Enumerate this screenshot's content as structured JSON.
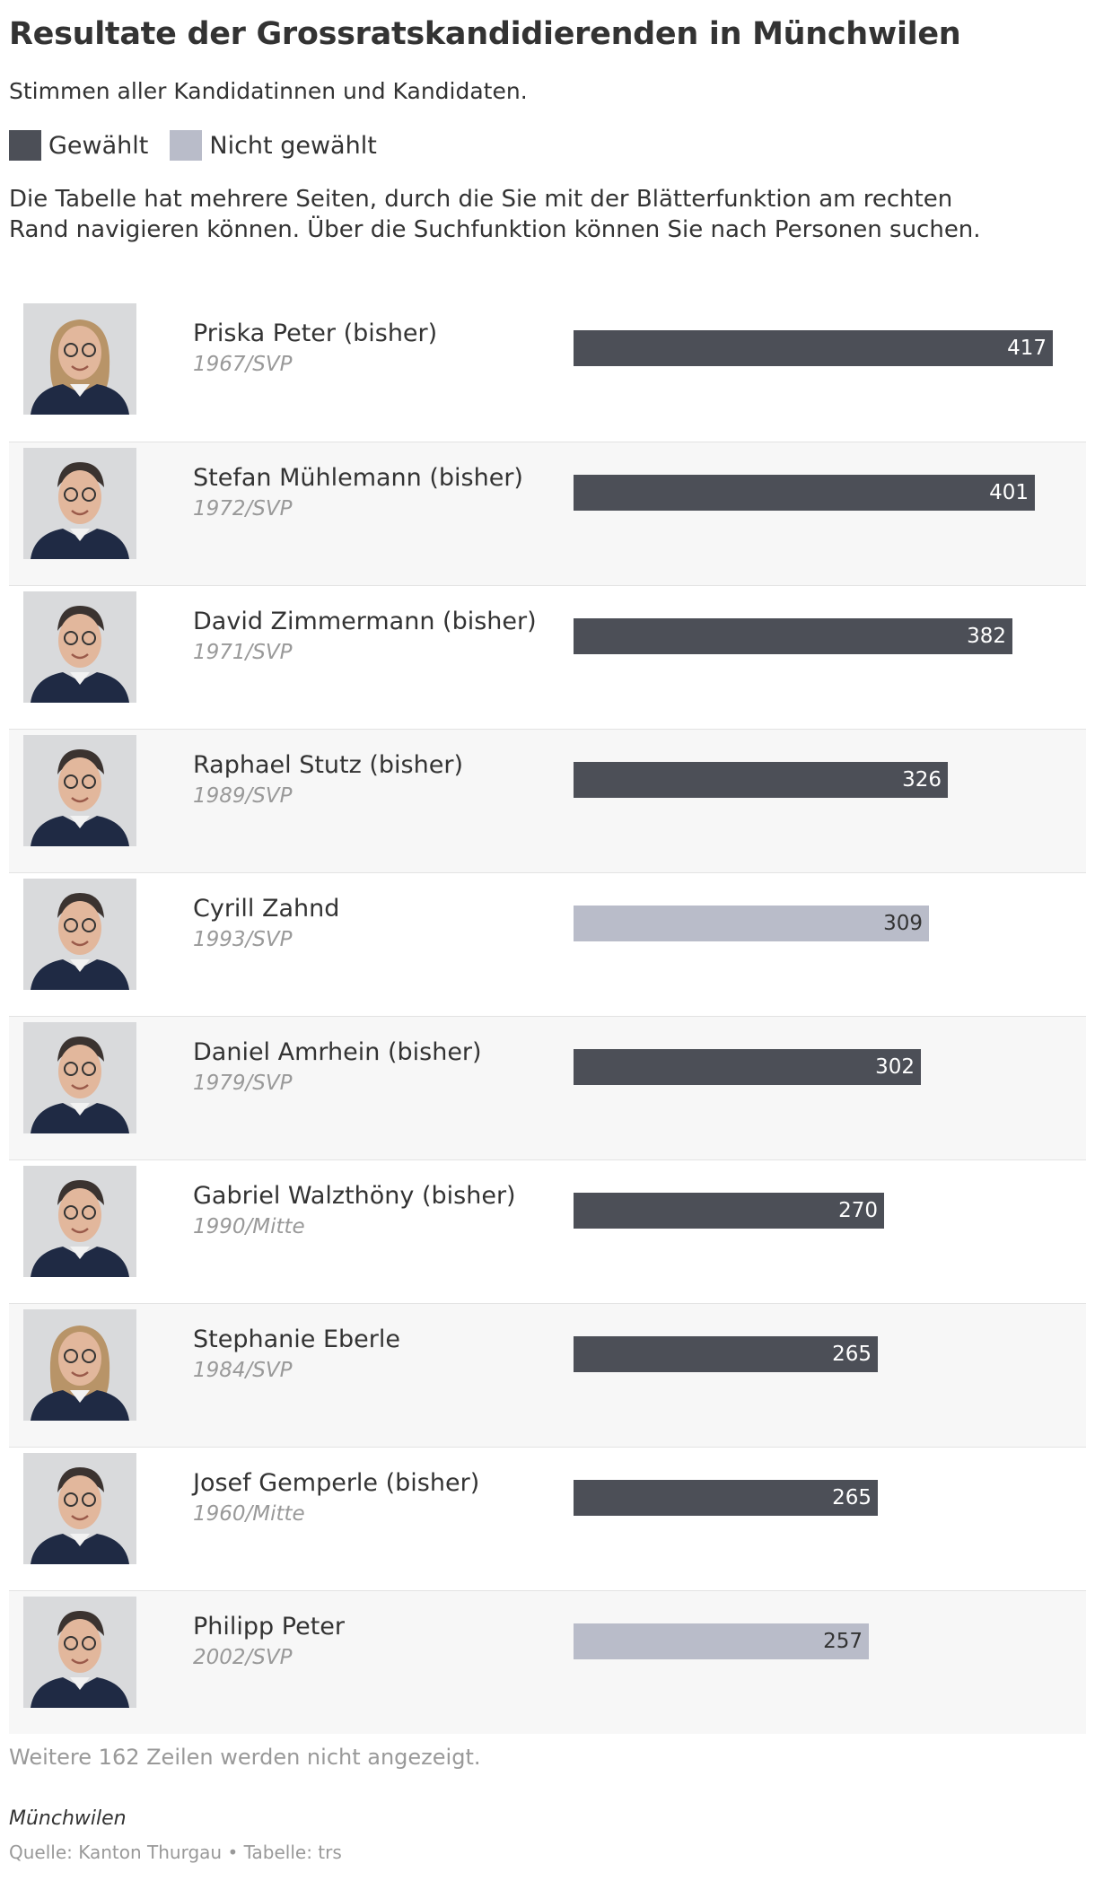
{
  "title": "Resultate der Grossratskandidierenden in Münchwilen",
  "subtitle": "Stimmen aller Kandidatinnen und Kandidaten.",
  "legend": {
    "elected": {
      "label": "Gewählt",
      "color": "#4c4f57"
    },
    "not_elected": {
      "label": "Nicht gewählt",
      "color": "#b9bcc9"
    }
  },
  "description": "Die Tabelle hat mehrere Seiten, durch die Sie mit der Blätterfunktion am rechten Rand navigieren können. Über die Suchfunktion können Sie nach Personen suchen.",
  "chart_data": {
    "type": "bar",
    "max_value": 417,
    "rows": [
      {
        "name": "Priska Peter (bisher)",
        "meta": "1967/SVP",
        "value": 417,
        "elected": true,
        "photo_icon": "portrait-woman-icon"
      },
      {
        "name": "Stefan Mühlemann (bisher)",
        "meta": "1972/SVP",
        "value": 401,
        "elected": true,
        "photo_icon": "portrait-man-icon"
      },
      {
        "name": "David Zimmermann (bisher)",
        "meta": "1971/SVP",
        "value": 382,
        "elected": true,
        "photo_icon": "portrait-man-icon"
      },
      {
        "name": "Raphael Stutz (bisher)",
        "meta": "1989/SVP",
        "value": 326,
        "elected": true,
        "photo_icon": "portrait-man-icon"
      },
      {
        "name": "Cyrill Zahnd",
        "meta": "1993/SVP",
        "value": 309,
        "elected": false,
        "photo_icon": "portrait-man-icon"
      },
      {
        "name": "Daniel Amrhein (bisher)",
        "meta": "1979/SVP",
        "value": 302,
        "elected": true,
        "photo_icon": "portrait-man-icon"
      },
      {
        "name": "Gabriel Walzthöny (bisher)",
        "meta": "1990/Mitte",
        "value": 270,
        "elected": true,
        "photo_icon": "portrait-man-icon"
      },
      {
        "name": "Stephanie Eberle",
        "meta": "1984/SVP",
        "value": 265,
        "elected": true,
        "photo_icon": "portrait-woman-icon"
      },
      {
        "name": "Josef Gemperle (bisher)",
        "meta": "1960/Mitte",
        "value": 265,
        "elected": true,
        "photo_icon": "portrait-man-icon"
      },
      {
        "name": "Philipp Peter",
        "meta": "2002/SVP",
        "value": 257,
        "elected": false,
        "photo_icon": "portrait-man-icon"
      }
    ]
  },
  "more_rows": "Weitere 162 Zeilen werden nicht angezeigt.",
  "region": "Münchwilen",
  "source": "Quelle: Kanton Thurgau • Tabelle: trs"
}
